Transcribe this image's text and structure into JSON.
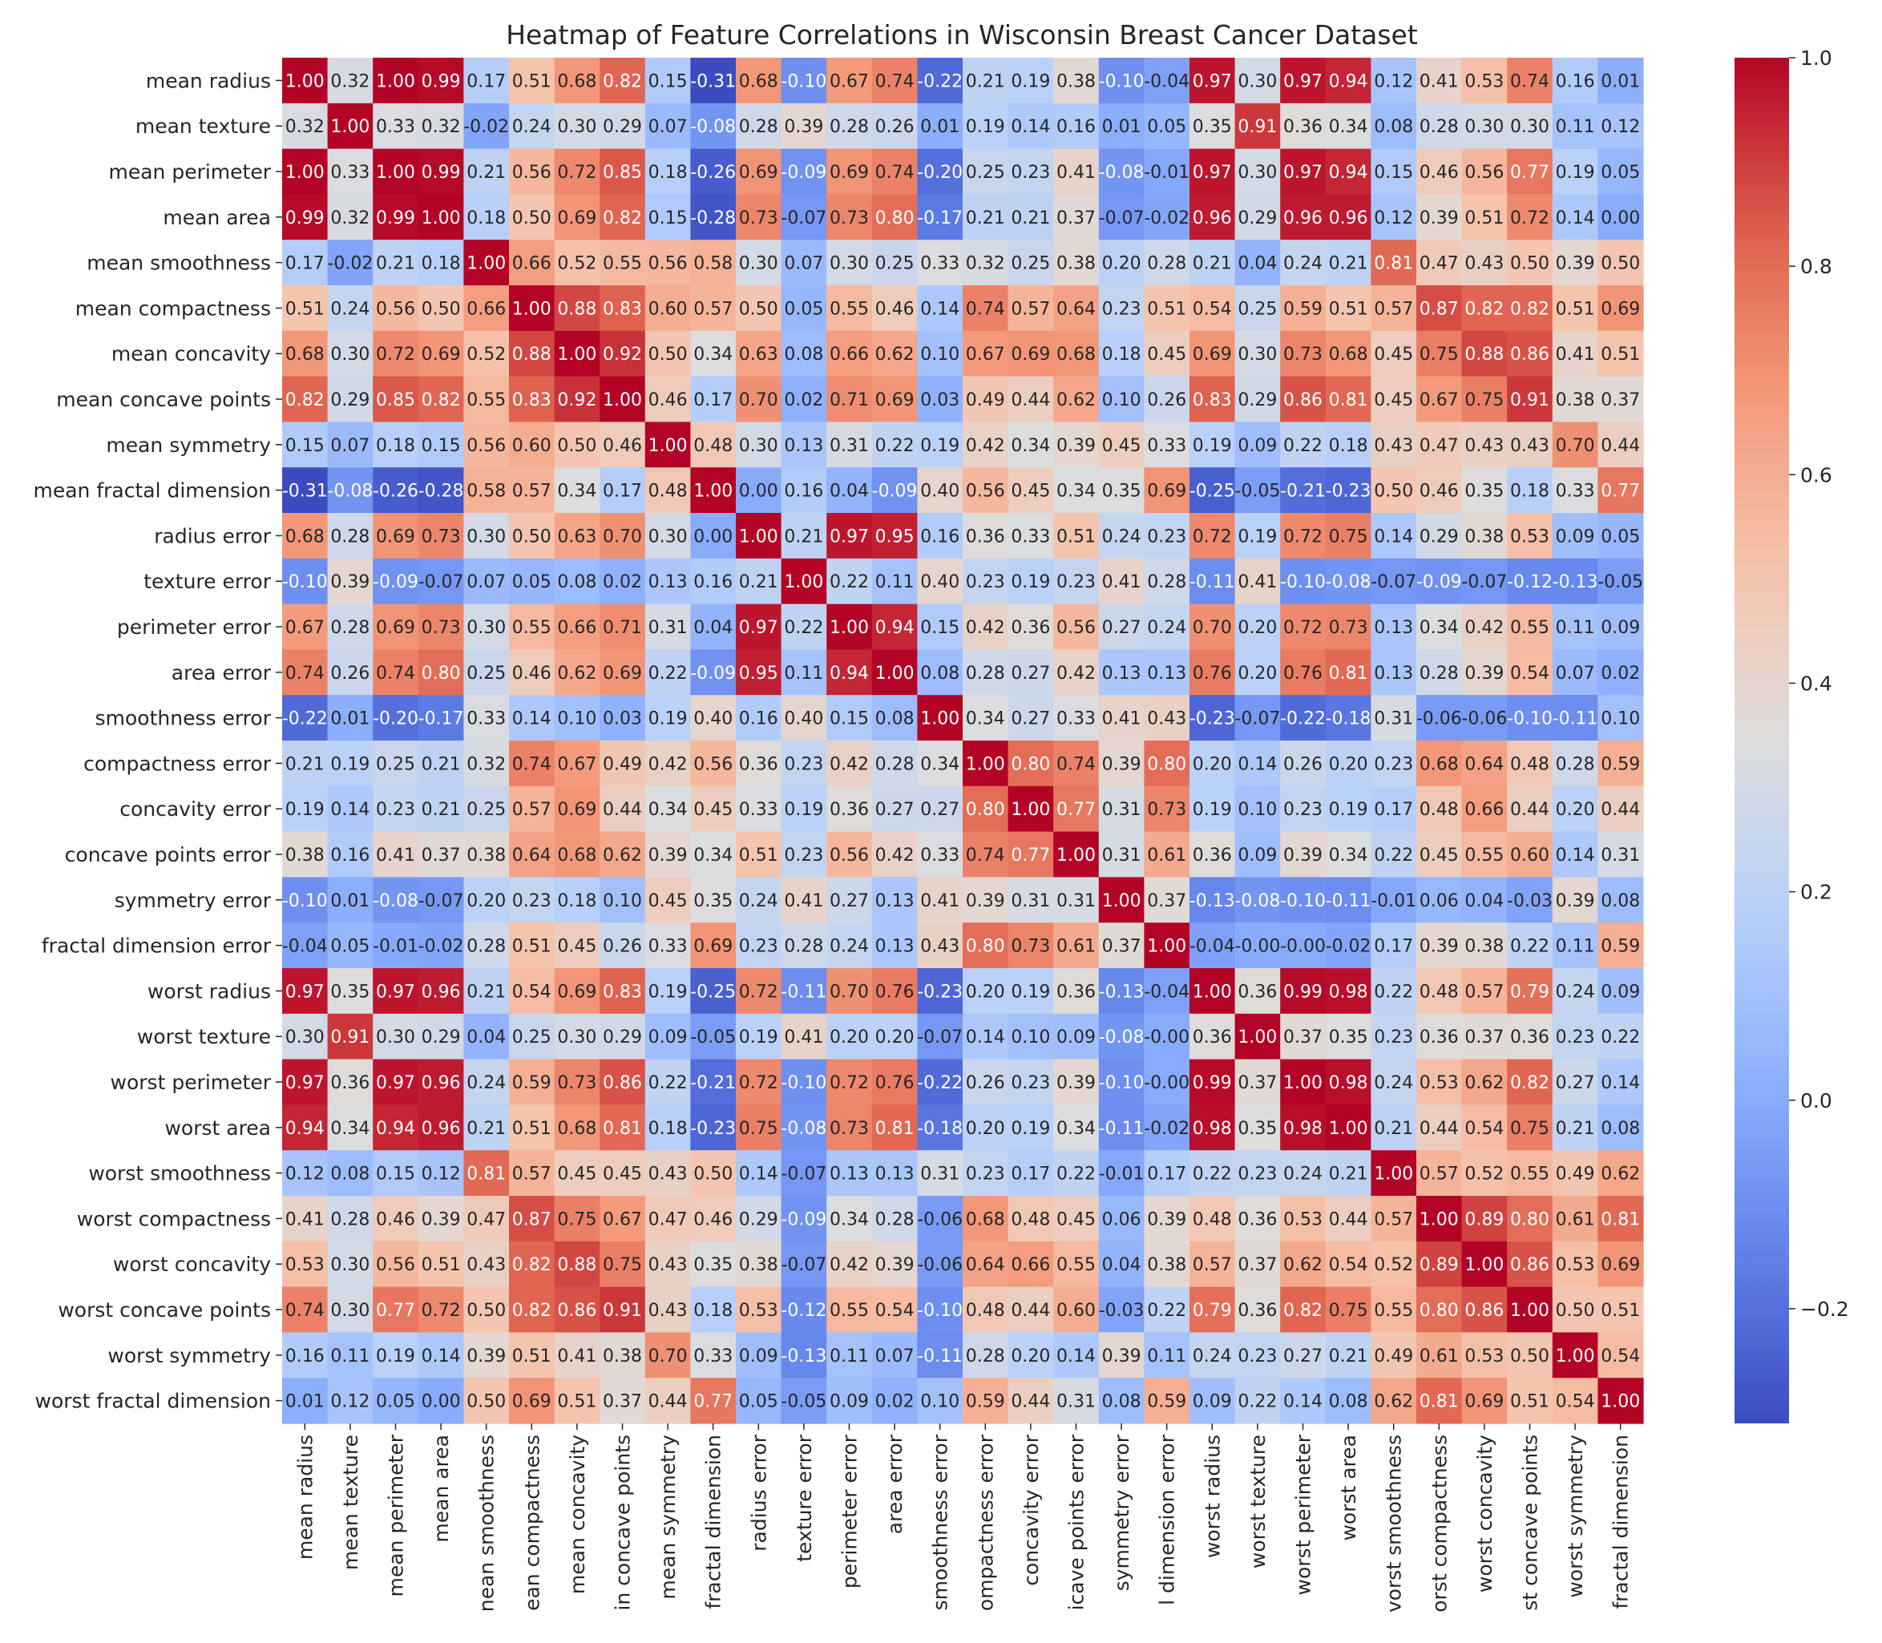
{
  "chart_data": {
    "type": "heatmap",
    "title": "Heatmap of Feature Correlations in Wisconsin Breast Cancer Dataset",
    "row_labels": [
      "mean radius",
      "mean texture",
      "mean perimeter",
      "mean area",
      "mean smoothness",
      "mean compactness",
      "mean concavity",
      "mean concave points",
      "mean symmetry",
      "mean fractal dimension",
      "radius error",
      "texture error",
      "perimeter error",
      "area error",
      "smoothness error",
      "compactness error",
      "concavity error",
      "concave points error",
      "symmetry error",
      "fractal dimension error",
      "worst radius",
      "worst texture",
      "worst perimeter",
      "worst area",
      "worst smoothness",
      "worst compactness",
      "worst concavity",
      "worst concave points",
      "worst symmetry",
      "worst fractal dimension"
    ],
    "column_labels": [
      "mean radius",
      "mean texture",
      "mean perimeter",
      "mean area",
      "nean smoothness",
      "ean compactness",
      "mean concavity",
      "in concave points",
      "mean symmetry",
      "fractal dimension",
      "radius error",
      "texture error",
      "perimeter error",
      "area error",
      "smoothness error",
      "ompactness error",
      "concavity error",
      "icave points error",
      "symmetry error",
      "l dimension error",
      "worst radius",
      "worst texture",
      "worst perimeter",
      "worst area",
      "vorst smoothness",
      "orst compactness",
      "worst concavity",
      "st concave points",
      "worst symmetry",
      "fractal dimension"
    ],
    "values": [
      [
        1.0,
        0.32,
        1.0,
        0.99,
        0.17,
        0.51,
        0.68,
        0.82,
        0.15,
        -0.31,
        0.68,
        -0.1,
        0.67,
        0.74,
        -0.22,
        0.21,
        0.19,
        0.38,
        -0.1,
        -0.04,
        0.97,
        0.3,
        0.97,
        0.94,
        0.12,
        0.41,
        0.53,
        0.74,
        0.16,
        0.01
      ],
      [
        0.32,
        1.0,
        0.33,
        0.32,
        -0.02,
        0.24,
        0.3,
        0.29,
        0.07,
        -0.08,
        0.28,
        0.39,
        0.28,
        0.26,
        0.01,
        0.19,
        0.14,
        0.16,
        0.01,
        0.05,
        0.35,
        0.91,
        0.36,
        0.34,
        0.08,
        0.28,
        0.3,
        0.3,
        0.11,
        0.12
      ],
      [
        1.0,
        0.33,
        1.0,
        0.99,
        0.21,
        0.56,
        0.72,
        0.85,
        0.18,
        -0.26,
        0.69,
        -0.09,
        0.69,
        0.74,
        -0.2,
        0.25,
        0.23,
        0.41,
        -0.08,
        -0.01,
        0.97,
        0.3,
        0.97,
        0.94,
        0.15,
        0.46,
        0.56,
        0.77,
        0.19,
        0.05
      ],
      [
        0.99,
        0.32,
        0.99,
        1.0,
        0.18,
        0.5,
        0.69,
        0.82,
        0.15,
        -0.28,
        0.73,
        -0.07,
        0.73,
        0.8,
        -0.17,
        0.21,
        0.21,
        0.37,
        -0.07,
        -0.02,
        0.96,
        0.29,
        0.96,
        0.96,
        0.12,
        0.39,
        0.51,
        0.72,
        0.14,
        0.0
      ],
      [
        0.17,
        -0.02,
        0.21,
        0.18,
        1.0,
        0.66,
        0.52,
        0.55,
        0.56,
        0.58,
        0.3,
        0.07,
        0.3,
        0.25,
        0.33,
        0.32,
        0.25,
        0.38,
        0.2,
        0.28,
        0.21,
        0.04,
        0.24,
        0.21,
        0.81,
        0.47,
        0.43,
        0.5,
        0.39,
        0.5
      ],
      [
        0.51,
        0.24,
        0.56,
        0.5,
        0.66,
        1.0,
        0.88,
        0.83,
        0.6,
        0.57,
        0.5,
        0.05,
        0.55,
        0.46,
        0.14,
        0.74,
        0.57,
        0.64,
        0.23,
        0.51,
        0.54,
        0.25,
        0.59,
        0.51,
        0.57,
        0.87,
        0.82,
        0.82,
        0.51,
        0.69
      ],
      [
        0.68,
        0.3,
        0.72,
        0.69,
        0.52,
        0.88,
        1.0,
        0.92,
        0.5,
        0.34,
        0.63,
        0.08,
        0.66,
        0.62,
        0.1,
        0.67,
        0.69,
        0.68,
        0.18,
        0.45,
        0.69,
        0.3,
        0.73,
        0.68,
        0.45,
        0.75,
        0.88,
        0.86,
        0.41,
        0.51
      ],
      [
        0.82,
        0.29,
        0.85,
        0.82,
        0.55,
        0.83,
        0.92,
        1.0,
        0.46,
        0.17,
        0.7,
        0.02,
        0.71,
        0.69,
        0.03,
        0.49,
        0.44,
        0.62,
        0.1,
        0.26,
        0.83,
        0.29,
        0.86,
        0.81,
        0.45,
        0.67,
        0.75,
        0.91,
        0.38,
        0.37
      ],
      [
        0.15,
        0.07,
        0.18,
        0.15,
        0.56,
        0.6,
        0.5,
        0.46,
        1.0,
        0.48,
        0.3,
        0.13,
        0.31,
        0.22,
        0.19,
        0.42,
        0.34,
        0.39,
        0.45,
        0.33,
        0.19,
        0.09,
        0.22,
        0.18,
        0.43,
        0.47,
        0.43,
        0.43,
        0.7,
        0.44
      ],
      [
        -0.31,
        -0.08,
        -0.26,
        -0.28,
        0.58,
        0.57,
        0.34,
        0.17,
        0.48,
        1.0,
        0.0,
        0.16,
        0.04,
        -0.09,
        0.4,
        0.56,
        0.45,
        0.34,
        0.35,
        0.69,
        -0.25,
        -0.05,
        -0.21,
        -0.23,
        0.5,
        0.46,
        0.35,
        0.18,
        0.33,
        0.77
      ],
      [
        0.68,
        0.28,
        0.69,
        0.73,
        0.3,
        0.5,
        0.63,
        0.7,
        0.3,
        0.0,
        1.0,
        0.21,
        0.97,
        0.95,
        0.16,
        0.36,
        0.33,
        0.51,
        0.24,
        0.23,
        0.72,
        0.19,
        0.72,
        0.75,
        0.14,
        0.29,
        0.38,
        0.53,
        0.09,
        0.05
      ],
      [
        -0.1,
        0.39,
        -0.09,
        -0.07,
        0.07,
        0.05,
        0.08,
        0.02,
        0.13,
        0.16,
        0.21,
        1.0,
        0.22,
        0.11,
        0.4,
        0.23,
        0.19,
        0.23,
        0.41,
        0.28,
        -0.11,
        0.41,
        -0.1,
        -0.08,
        -0.07,
        -0.09,
        -0.07,
        -0.12,
        -0.13,
        -0.05
      ],
      [
        0.67,
        0.28,
        0.69,
        0.73,
        0.3,
        0.55,
        0.66,
        0.71,
        0.31,
        0.04,
        0.97,
        0.22,
        1.0,
        0.94,
        0.15,
        0.42,
        0.36,
        0.56,
        0.27,
        0.24,
        0.7,
        0.2,
        0.72,
        0.73,
        0.13,
        0.34,
        0.42,
        0.55,
        0.11,
        0.09
      ],
      [
        0.74,
        0.26,
        0.74,
        0.8,
        0.25,
        0.46,
        0.62,
        0.69,
        0.22,
        -0.09,
        0.95,
        0.11,
        0.94,
        1.0,
        0.08,
        0.28,
        0.27,
        0.42,
        0.13,
        0.13,
        0.76,
        0.2,
        0.76,
        0.81,
        0.13,
        0.28,
        0.39,
        0.54,
        0.07,
        0.02
      ],
      [
        -0.22,
        0.01,
        -0.2,
        -0.17,
        0.33,
        0.14,
        0.1,
        0.03,
        0.19,
        0.4,
        0.16,
        0.4,
        0.15,
        0.08,
        1.0,
        0.34,
        0.27,
        0.33,
        0.41,
        0.43,
        -0.23,
        -0.07,
        -0.22,
        -0.18,
        0.31,
        -0.06,
        -0.06,
        -0.1,
        -0.11,
        0.1
      ],
      [
        0.21,
        0.19,
        0.25,
        0.21,
        0.32,
        0.74,
        0.67,
        0.49,
        0.42,
        0.56,
        0.36,
        0.23,
        0.42,
        0.28,
        0.34,
        1.0,
        0.8,
        0.74,
        0.39,
        0.8,
        0.2,
        0.14,
        0.26,
        0.2,
        0.23,
        0.68,
        0.64,
        0.48,
        0.28,
        0.59
      ],
      [
        0.19,
        0.14,
        0.23,
        0.21,
        0.25,
        0.57,
        0.69,
        0.44,
        0.34,
        0.45,
        0.33,
        0.19,
        0.36,
        0.27,
        0.27,
        0.8,
        1.0,
        0.77,
        0.31,
        0.73,
        0.19,
        0.1,
        0.23,
        0.19,
        0.17,
        0.48,
        0.66,
        0.44,
        0.2,
        0.44
      ],
      [
        0.38,
        0.16,
        0.41,
        0.37,
        0.38,
        0.64,
        0.68,
        0.62,
        0.39,
        0.34,
        0.51,
        0.23,
        0.56,
        0.42,
        0.33,
        0.74,
        0.77,
        1.0,
        0.31,
        0.61,
        0.36,
        0.09,
        0.39,
        0.34,
        0.22,
        0.45,
        0.55,
        0.6,
        0.14,
        0.31
      ],
      [
        -0.1,
        0.01,
        -0.08,
        -0.07,
        0.2,
        0.23,
        0.18,
        0.1,
        0.45,
        0.35,
        0.24,
        0.41,
        0.27,
        0.13,
        0.41,
        0.39,
        0.31,
        0.31,
        1.0,
        0.37,
        -0.13,
        -0.08,
        -0.1,
        -0.11,
        -0.01,
        0.06,
        0.04,
        -0.03,
        0.39,
        0.08
      ],
      [
        -0.04,
        0.05,
        -0.01,
        -0.02,
        0.28,
        0.51,
        0.45,
        0.26,
        0.33,
        0.69,
        0.23,
        0.28,
        0.24,
        0.13,
        0.43,
        0.8,
        0.73,
        0.61,
        0.37,
        1.0,
        -0.04,
        -0.0,
        -0.0,
        -0.02,
        0.17,
        0.39,
        0.38,
        0.22,
        0.11,
        0.59
      ],
      [
        0.97,
        0.35,
        0.97,
        0.96,
        0.21,
        0.54,
        0.69,
        0.83,
        0.19,
        -0.25,
        0.72,
        -0.11,
        0.7,
        0.76,
        -0.23,
        0.2,
        0.19,
        0.36,
        -0.13,
        -0.04,
        1.0,
        0.36,
        0.99,
        0.98,
        0.22,
        0.48,
        0.57,
        0.79,
        0.24,
        0.09
      ],
      [
        0.3,
        0.91,
        0.3,
        0.29,
        0.04,
        0.25,
        0.3,
        0.29,
        0.09,
        -0.05,
        0.19,
        0.41,
        0.2,
        0.2,
        -0.07,
        0.14,
        0.1,
        0.09,
        -0.08,
        -0.0,
        0.36,
        1.0,
        0.37,
        0.35,
        0.23,
        0.36,
        0.37,
        0.36,
        0.23,
        0.22
      ],
      [
        0.97,
        0.36,
        0.97,
        0.96,
        0.24,
        0.59,
        0.73,
        0.86,
        0.22,
        -0.21,
        0.72,
        -0.1,
        0.72,
        0.76,
        -0.22,
        0.26,
        0.23,
        0.39,
        -0.1,
        -0.0,
        0.99,
        0.37,
        1.0,
        0.98,
        0.24,
        0.53,
        0.62,
        0.82,
        0.27,
        0.14
      ],
      [
        0.94,
        0.34,
        0.94,
        0.96,
        0.21,
        0.51,
        0.68,
        0.81,
        0.18,
        -0.23,
        0.75,
        -0.08,
        0.73,
        0.81,
        -0.18,
        0.2,
        0.19,
        0.34,
        -0.11,
        -0.02,
        0.98,
        0.35,
        0.98,
        1.0,
        0.21,
        0.44,
        0.54,
        0.75,
        0.21,
        0.08
      ],
      [
        0.12,
        0.08,
        0.15,
        0.12,
        0.81,
        0.57,
        0.45,
        0.45,
        0.43,
        0.5,
        0.14,
        -0.07,
        0.13,
        0.13,
        0.31,
        0.23,
        0.17,
        0.22,
        -0.01,
        0.17,
        0.22,
        0.23,
        0.24,
        0.21,
        1.0,
        0.57,
        0.52,
        0.55,
        0.49,
        0.62
      ],
      [
        0.41,
        0.28,
        0.46,
        0.39,
        0.47,
        0.87,
        0.75,
        0.67,
        0.47,
        0.46,
        0.29,
        -0.09,
        0.34,
        0.28,
        -0.06,
        0.68,
        0.48,
        0.45,
        0.06,
        0.39,
        0.48,
        0.36,
        0.53,
        0.44,
        0.57,
        1.0,
        0.89,
        0.8,
        0.61,
        0.81
      ],
      [
        0.53,
        0.3,
        0.56,
        0.51,
        0.43,
        0.82,
        0.88,
        0.75,
        0.43,
        0.35,
        0.38,
        -0.07,
        0.42,
        0.39,
        -0.06,
        0.64,
        0.66,
        0.55,
        0.04,
        0.38,
        0.57,
        0.37,
        0.62,
        0.54,
        0.52,
        0.89,
        1.0,
        0.86,
        0.53,
        0.69
      ],
      [
        0.74,
        0.3,
        0.77,
        0.72,
        0.5,
        0.82,
        0.86,
        0.91,
        0.43,
        0.18,
        0.53,
        -0.12,
        0.55,
        0.54,
        -0.1,
        0.48,
        0.44,
        0.6,
        -0.03,
        0.22,
        0.79,
        0.36,
        0.82,
        0.75,
        0.55,
        0.8,
        0.86,
        1.0,
        0.5,
        0.51
      ],
      [
        0.16,
        0.11,
        0.19,
        0.14,
        0.39,
        0.51,
        0.41,
        0.38,
        0.7,
        0.33,
        0.09,
        -0.13,
        0.11,
        0.07,
        -0.11,
        0.28,
        0.2,
        0.14,
        0.39,
        0.11,
        0.24,
        0.23,
        0.27,
        0.21,
        0.49,
        0.61,
        0.53,
        0.5,
        1.0,
        0.54
      ],
      [
        0.01,
        0.12,
        0.05,
        0.0,
        0.5,
        0.69,
        0.51,
        0.37,
        0.44,
        0.77,
        0.05,
        -0.05,
        0.09,
        0.02,
        0.1,
        0.59,
        0.44,
        0.31,
        0.08,
        0.59,
        0.09,
        0.22,
        0.14,
        0.08,
        0.62,
        0.81,
        0.69,
        0.51,
        0.54,
        1.0
      ]
    ],
    "colorbar": {
      "colormap": "coolwarm",
      "vmin": -0.31,
      "vmax": 1.0,
      "ticks": [
        -0.2,
        0.0,
        0.2,
        0.4,
        0.6,
        0.8,
        1.0
      ],
      "tick_labels": [
        "−0.2",
        "0.0",
        "0.2",
        "0.4",
        "0.6",
        "0.8",
        "1.0"
      ]
    },
    "annotation_format": "0.00"
  }
}
